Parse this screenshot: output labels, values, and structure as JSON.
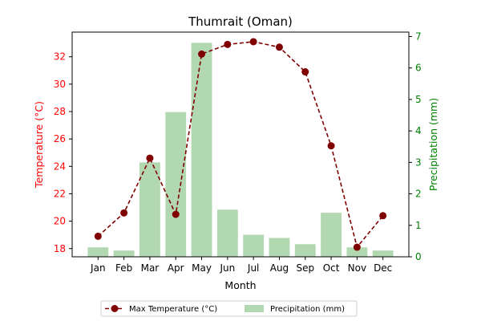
{
  "chart_data": {
    "type": "bar+line",
    "title": "Thumrait (Oman)",
    "xlabel": "Month",
    "categories": [
      "Jan",
      "Feb",
      "Mar",
      "Apr",
      "May",
      "Jun",
      "Jul",
      "Aug",
      "Sep",
      "Oct",
      "Nov",
      "Dec"
    ],
    "series": [
      {
        "name": "Max Temperature (°C)",
        "type": "line",
        "axis": "left",
        "color": "#800000",
        "style": "dashed",
        "marker": "circle",
        "values": [
          18.9,
          20.6,
          24.6,
          20.5,
          32.2,
          32.9,
          33.1,
          32.7,
          30.9,
          25.5,
          18.1,
          20.4
        ]
      },
      {
        "name": "Precipitation (mm)",
        "type": "bar",
        "axis": "right",
        "color": "#b2d8b2",
        "values": [
          0.3,
          0.2,
          3.0,
          4.6,
          6.8,
          1.5,
          0.7,
          0.6,
          0.4,
          1.4,
          0.3,
          0.2
        ]
      }
    ],
    "y_left": {
      "label": "Temperature (°C)",
      "color": "#ff0000",
      "lim": [
        17.4,
        33.8
      ],
      "ticks": [
        18,
        20,
        22,
        24,
        26,
        28,
        30,
        32
      ]
    },
    "y_right": {
      "label": "Precipitation (mm)",
      "color": "#008000",
      "lim": [
        0,
        7.14
      ],
      "ticks": [
        0,
        1,
        2,
        3,
        4,
        5,
        6,
        7
      ]
    },
    "legend": {
      "placement": "bottom-center",
      "entries": [
        "Max Temperature (°C)",
        "Precipitation (mm)"
      ]
    },
    "grid": false
  }
}
